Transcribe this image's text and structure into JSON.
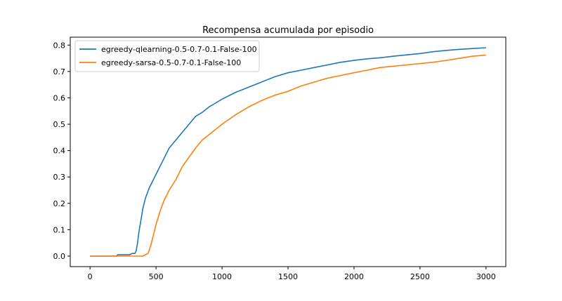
{
  "chart_data": {
    "type": "line",
    "title": "Recompensa acumulada por episodio",
    "xlabel": "",
    "ylabel": "",
    "xlim": [
      -150,
      3150
    ],
    "ylim": [
      -0.04,
      0.83
    ],
    "xticks": [
      0,
      500,
      1000,
      1500,
      2000,
      2500,
      3000
    ],
    "yticks": [
      0.0,
      0.1,
      0.2,
      0.3,
      0.4,
      0.5,
      0.6,
      0.7,
      0.8
    ],
    "grid": false,
    "legend_position": "upper-left",
    "series": [
      {
        "name": "egreedy-qlearning-0.5-0.7-0.1-False-100",
        "color": "#1f77b4",
        "x": [
          0,
          200,
          210,
          300,
          320,
          340,
          350,
          360,
          370,
          380,
          390,
          400,
          420,
          450,
          480,
          500,
          550,
          600,
          650,
          700,
          750,
          800,
          850,
          900,
          950,
          1000,
          1100,
          1200,
          1300,
          1400,
          1500,
          1600,
          1700,
          1800,
          1900,
          2000,
          2100,
          2200,
          2300,
          2400,
          2500,
          2600,
          2700,
          2800,
          2900,
          3000
        ],
        "values": [
          0.0,
          0.0,
          0.005,
          0.005,
          0.01,
          0.01,
          0.02,
          0.05,
          0.09,
          0.12,
          0.15,
          0.18,
          0.22,
          0.26,
          0.29,
          0.31,
          0.36,
          0.41,
          0.44,
          0.47,
          0.5,
          0.53,
          0.545,
          0.565,
          0.58,
          0.595,
          0.62,
          0.64,
          0.66,
          0.68,
          0.695,
          0.705,
          0.715,
          0.725,
          0.735,
          0.742,
          0.748,
          0.752,
          0.758,
          0.763,
          0.768,
          0.775,
          0.78,
          0.784,
          0.787,
          0.79
        ]
      },
      {
        "name": "egreedy-sarsa-0.5-0.7-0.1-False-100",
        "color": "#ff7f0e",
        "x": [
          0,
          350,
          400,
          420,
          440,
          460,
          480,
          500,
          530,
          560,
          600,
          650,
          700,
          750,
          800,
          850,
          900,
          950,
          1000,
          1100,
          1200,
          1300,
          1400,
          1500,
          1600,
          1700,
          1800,
          1900,
          2000,
          2100,
          2200,
          2300,
          2400,
          2500,
          2600,
          2700,
          2800,
          2900,
          3000
        ],
        "values": [
          0.0,
          0.0,
          0.0,
          0.005,
          0.01,
          0.04,
          0.08,
          0.12,
          0.17,
          0.21,
          0.25,
          0.29,
          0.34,
          0.375,
          0.41,
          0.44,
          0.46,
          0.48,
          0.5,
          0.535,
          0.565,
          0.59,
          0.61,
          0.625,
          0.645,
          0.66,
          0.675,
          0.685,
          0.695,
          0.705,
          0.715,
          0.72,
          0.725,
          0.73,
          0.735,
          0.742,
          0.75,
          0.758,
          0.762
        ]
      }
    ]
  }
}
